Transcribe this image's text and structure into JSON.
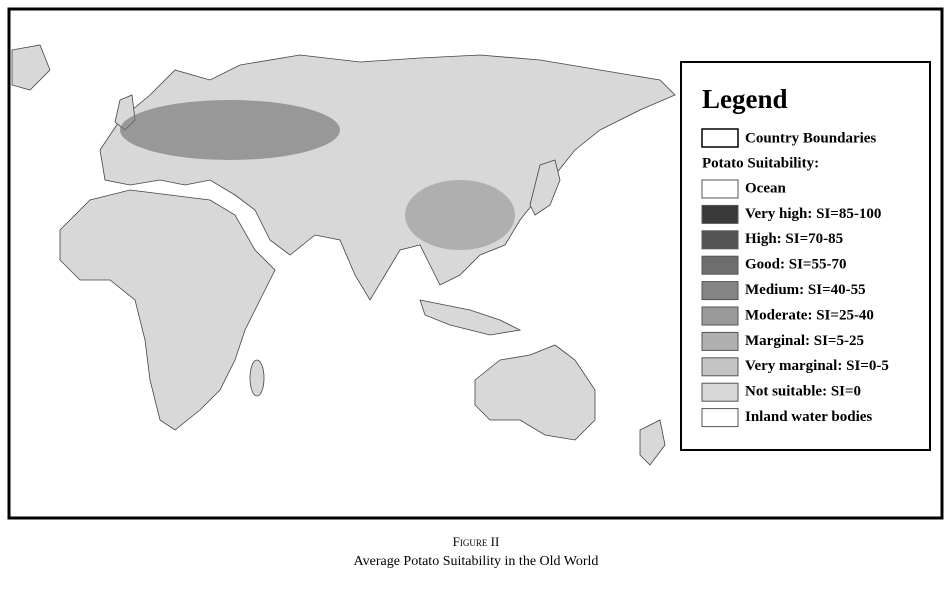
{
  "legend": {
    "title": "Legend",
    "boundary_label": "Country Boundaries",
    "section_title": "Potato Suitability:",
    "items": [
      {
        "label": "Ocean",
        "color": "#ffffff"
      },
      {
        "label": "Very high: SI=85-100",
        "color": "#3a3a3a"
      },
      {
        "label": "High: SI=70-85",
        "color": "#555555"
      },
      {
        "label": "Good: SI=55-70",
        "color": "#6e6e6e"
      },
      {
        "label": "Medium: SI=40-55",
        "color": "#858585"
      },
      {
        "label": "Moderate: SI=25-40",
        "color": "#9a9a9a"
      },
      {
        "label": "Marginal: SI=5-25",
        "color": "#b0b0b0"
      },
      {
        "label": "Very marginal: SI=0-5",
        "color": "#c4c4c4"
      },
      {
        "label": "Not suitable: SI=0",
        "color": "#d8d8d8"
      },
      {
        "label": "Inland water bodies",
        "color": "#ffffff"
      }
    ]
  },
  "caption": {
    "figure": "Figure II",
    "title": "Average Potato Suitability in the Old World"
  }
}
